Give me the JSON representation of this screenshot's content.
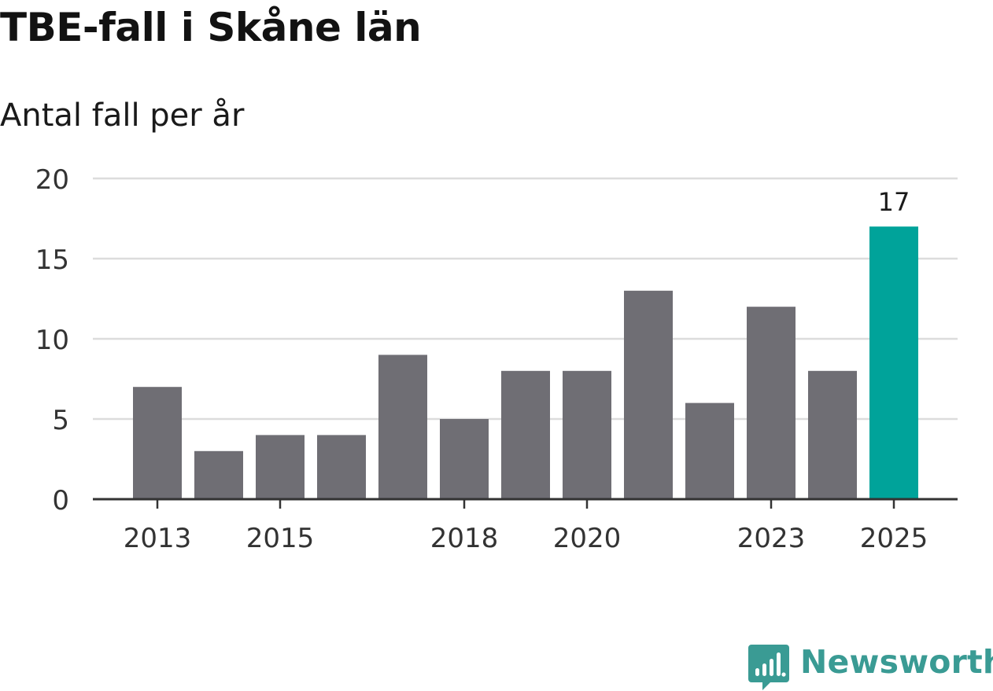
{
  "header": {
    "title": "TBE-fall i Skåne län",
    "subtitle": "Antal fall per år"
  },
  "colors": {
    "bar": "#6f6e74",
    "highlight": "#00a39a",
    "gridline": "#dcdcdc",
    "axis": "#333333",
    "brand": "#3a9b94"
  },
  "brand": {
    "name": "Newsworthy",
    "icon": "newsworthy-logo-icon"
  },
  "chart_data": {
    "type": "bar",
    "title": "TBE-fall i Skåne län",
    "subtitle": "Antal fall per år",
    "xlabel": "",
    "ylabel": "",
    "categories": [
      "2013",
      "2014",
      "2015",
      "2016",
      "2017",
      "2018",
      "2019",
      "2020",
      "2021",
      "2022",
      "2023",
      "2024",
      "2025"
    ],
    "values": [
      7,
      3,
      4,
      4,
      9,
      5,
      8,
      8,
      13,
      6,
      12,
      8,
      17
    ],
    "highlight_index": 12,
    "data_labels": [
      {
        "category": "2025",
        "text": "17"
      }
    ],
    "x_tick_labels": [
      "2013",
      "2015",
      "2018",
      "2020",
      "2023",
      "2025"
    ],
    "y_ticks": [
      0,
      5,
      10,
      15,
      20
    ],
    "ylim": [
      0,
      20
    ],
    "grid": true,
    "legend": "none"
  }
}
